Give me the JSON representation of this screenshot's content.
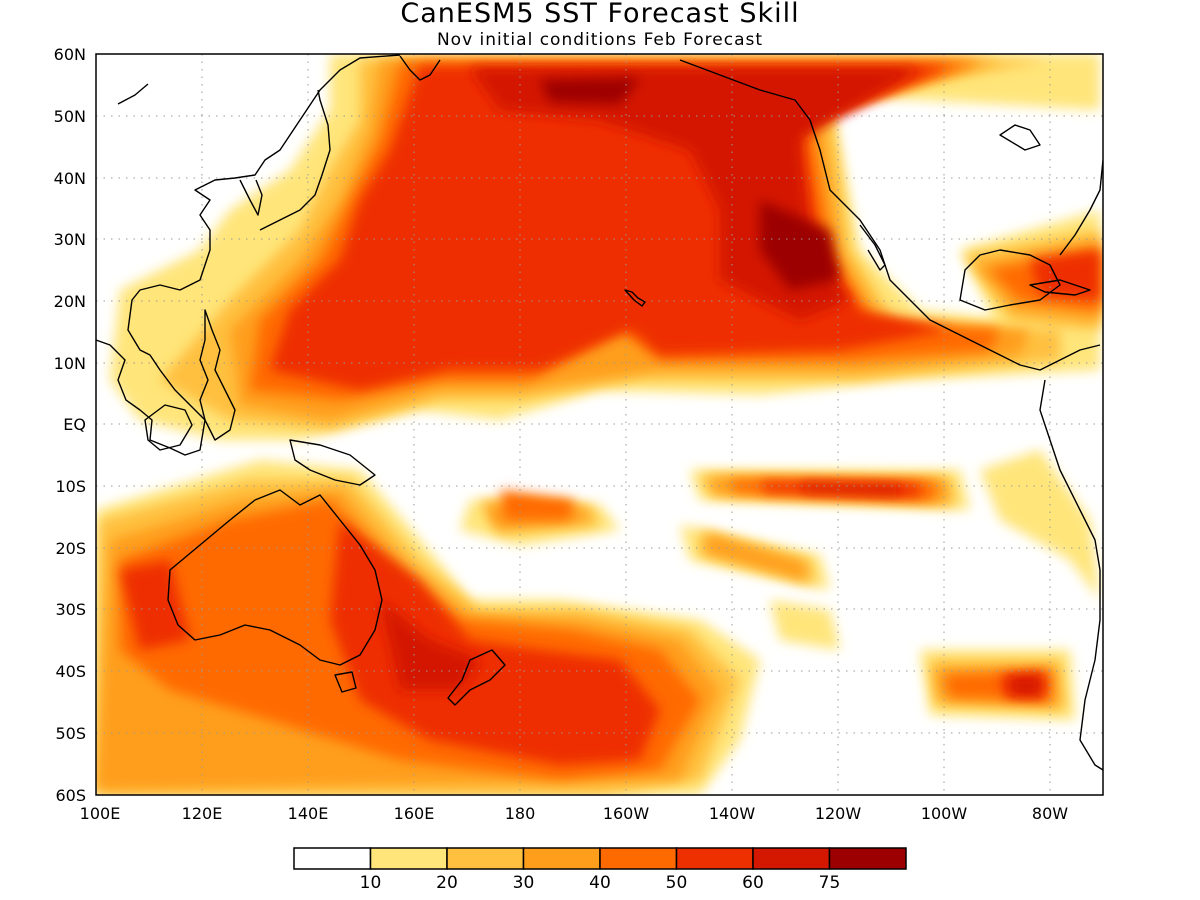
{
  "title": "CanESM5 SST Forecast Skill",
  "subtitle": "Nov initial conditions  Feb Forecast",
  "map": {
    "lat_labels": [
      "60N",
      "50N",
      "40N",
      "30N",
      "20N",
      "10N",
      "EQ",
      "10S",
      "20S",
      "30S",
      "40S",
      "50S",
      "60S"
    ],
    "lon_labels": [
      "100E",
      "120E",
      "140E",
      "160E",
      "180",
      "160W",
      "140W",
      "120W",
      "100W",
      "80W"
    ],
    "lat_range": [
      -60,
      60
    ],
    "lon_range_east": [
      100,
      290
    ],
    "grid": "dotted",
    "coastlines": true
  },
  "colorbar": {
    "colors": [
      "#ffffff",
      "#ffe57a",
      "#ffc040",
      "#ff9e1a",
      "#ff6a00",
      "#ee2f00",
      "#d41800",
      "#9c0000"
    ],
    "labels": [
      "10",
      "20",
      "30",
      "40",
      "50",
      "60",
      "75"
    ]
  },
  "skill_regions": [
    {
      "name": "North Pacific subtropical gyre",
      "level": 60
    },
    {
      "name": "Gulf of Alaska",
      "level": 75
    },
    {
      "name": "Northeast Pacific off Baja California",
      "level": 75
    },
    {
      "name": "Western tropical Pacific",
      "level": 50
    },
    {
      "name": "Coral Sea / Tasman Sea",
      "level": 60
    },
    {
      "name": "South Pacific convergence band",
      "level": 50
    },
    {
      "name": "Eastern equatorial Pacific",
      "level": 0
    },
    {
      "name": "Southeast Pacific band near 10S",
      "level": 60
    },
    {
      "name": "Caribbean / Gulf of Mexico",
      "level": 60
    },
    {
      "name": "Indian Ocean off Western Australia",
      "level": 40
    },
    {
      "name": "Southeast Pacific near 45S 85W",
      "level": 60
    }
  ]
}
